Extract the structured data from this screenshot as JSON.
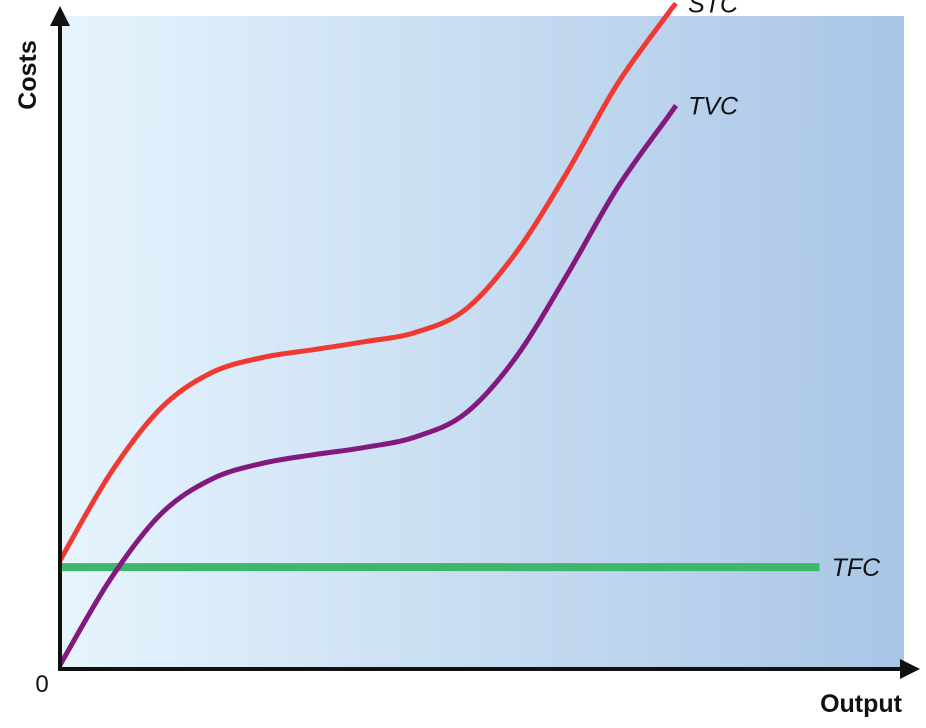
{
  "chart_data": {
    "type": "line",
    "title": "",
    "xlabel": "Output",
    "ylabel": "Costs",
    "origin_label": "0",
    "xlim": [
      0,
      100
    ],
    "ylim": [
      0,
      100
    ],
    "grid": false,
    "legend": "none",
    "background": {
      "gradient_from": "#e6f4fd",
      "gradient_to": "#a9c5e6"
    },
    "series": [
      {
        "name": "STC",
        "color": "#ef3a33",
        "x": [
          0,
          6,
          12,
          18,
          24,
          30,
          36,
          42,
          48,
          54,
          60,
          66,
          72,
          73
        ],
        "y": [
          16.6,
          30.0,
          40.0,
          45.4,
          47.7,
          48.9,
          50.1,
          51.5,
          55.0,
          63.7,
          75.9,
          89.5,
          100.3,
          101.9
        ]
      },
      {
        "name": "TVC",
        "color": "#82197e",
        "x": [
          0,
          6,
          12,
          18,
          24,
          30,
          36,
          42,
          48,
          54,
          60,
          66,
          72,
          73
        ],
        "y": [
          0.6,
          13.8,
          23.8,
          29.1,
          31.5,
          32.8,
          33.9,
          35.5,
          39.1,
          47.7,
          60.2,
          73.6,
          84.5,
          86.3
        ]
      },
      {
        "name": "TFC",
        "color": "#3db76b",
        "x": [
          0,
          90
        ],
        "y": [
          15.6,
          15.6
        ]
      }
    ]
  }
}
